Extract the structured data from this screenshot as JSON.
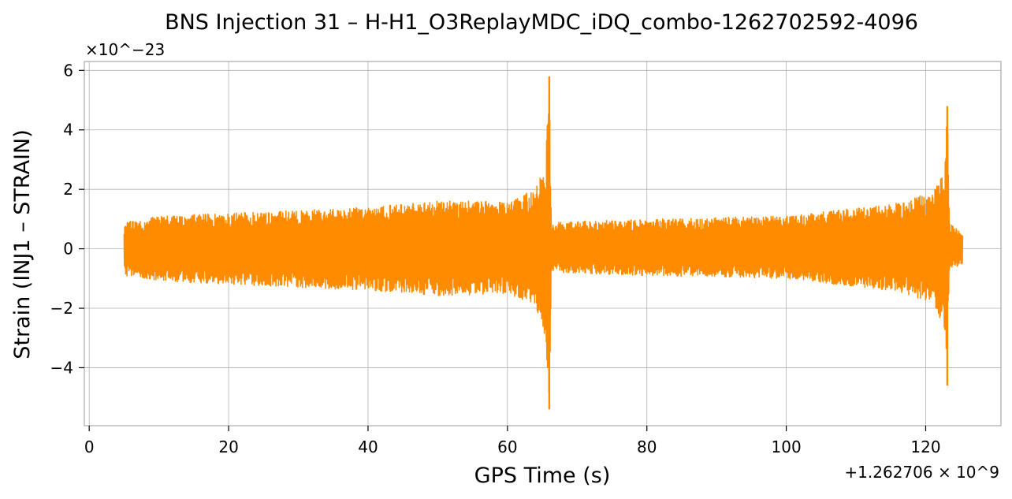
{
  "chart_data": {
    "type": "line",
    "title": "BNS Injection 31 – H-H1_O3ReplayMDC_iDQ_combo-1262702592-4096",
    "xlabel": "GPS Time (s)",
    "ylabel": "Strain (INJ1 – STRAIN)",
    "x_offset_label": "+1.262706 × 10^9",
    "y_multiplier_label": "×10^−23",
    "xlim": [
      -0.7,
      130.8
    ],
    "ylim": [
      -5.95,
      6.3
    ],
    "x_ticks": [
      0,
      20,
      40,
      60,
      80,
      100,
      120
    ],
    "x_tick_labels": [
      "0",
      "20",
      "40",
      "60",
      "80",
      "100",
      "120"
    ],
    "y_ticks": [
      -4,
      -2,
      0,
      2,
      4,
      6
    ],
    "y_tick_labels": [
      "−4",
      "−2",
      "0",
      "2",
      "4",
      "6"
    ],
    "grid": true,
    "legend": "none",
    "series": [
      {
        "color": "#ff8c00",
        "x_range": [
          5,
          125.3
        ],
        "envelope": [
          {
            "x": 5,
            "lo": -0.9,
            "hi": 0.9
          },
          {
            "x": 10,
            "lo": -1.1,
            "hi": 1.1
          },
          {
            "x": 20,
            "lo": -1.2,
            "hi": 1.2
          },
          {
            "x": 30,
            "lo": -1.3,
            "hi": 1.3
          },
          {
            "x": 40,
            "lo": -1.4,
            "hi": 1.4
          },
          {
            "x": 50,
            "lo": -1.6,
            "hi": 1.6
          },
          {
            "x": 60,
            "lo": -1.5,
            "hi": 1.6
          },
          {
            "x": 64,
            "lo": -1.9,
            "hi": 2.0
          },
          {
            "x": 65.5,
            "lo": -3.0,
            "hi": 3.0
          },
          {
            "x": 66.0,
            "lo": -5.4,
            "hi": 5.8
          },
          {
            "x": 66.3,
            "lo": -0.8,
            "hi": 0.9
          },
          {
            "x": 80,
            "lo": -0.9,
            "hi": 1.0
          },
          {
            "x": 100,
            "lo": -1.0,
            "hi": 1.1
          },
          {
            "x": 115,
            "lo": -1.4,
            "hi": 1.5
          },
          {
            "x": 121,
            "lo": -1.8,
            "hi": 1.9
          },
          {
            "x": 122.7,
            "lo": -2.8,
            "hi": 2.6
          },
          {
            "x": 123.1,
            "lo": -4.6,
            "hi": 4.8
          },
          {
            "x": 123.4,
            "lo": -0.7,
            "hi": 0.9
          },
          {
            "x": 125.3,
            "lo": -0.5,
            "hi": 0.5
          }
        ],
        "peaks": [
          {
            "x": 66.0,
            "max": 5.8,
            "min": -5.4
          },
          {
            "x": 123.1,
            "max": 4.8,
            "min": -4.6
          }
        ]
      }
    ]
  }
}
